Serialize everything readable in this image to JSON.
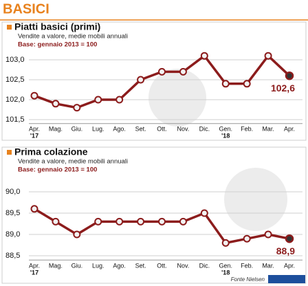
{
  "header": {
    "title": "BASICI"
  },
  "source": "Fonte Nielsen",
  "chart_data": [
    {
      "type": "line",
      "title": "Piatti basici (primi)",
      "subtitle": "Vendite a valore, medie mobili annuali",
      "note": "Base: gennaio 2013 = 100",
      "categories": [
        "Apr.",
        "Mag.",
        "Giu.",
        "Lug.",
        "Ago.",
        "Set.",
        "Ott.",
        "Nov.",
        "Dic.",
        "Gen.",
        "Feb.",
        "Mar.",
        "Apr."
      ],
      "x_sublabels": [
        "'17",
        null,
        null,
        null,
        null,
        null,
        null,
        null,
        null,
        "'18",
        null,
        null,
        null
      ],
      "values": [
        102.1,
        101.9,
        101.8,
        102.0,
        102.0,
        102.5,
        102.7,
        102.7,
        103.1,
        102.4,
        102.4,
        103.1,
        102.6
      ],
      "value_labels": [
        null,
        null,
        null,
        null,
        null,
        null,
        null,
        null,
        null,
        null,
        null,
        null,
        "102,6"
      ],
      "color": "#8c1c1c",
      "ylim": [
        101.4,
        103.2
      ],
      "yticks": [
        {
          "value": 101.5,
          "label": "101,5"
        },
        {
          "value": 102.0,
          "label": "102,0"
        },
        {
          "value": 102.5,
          "label": "102,5"
        },
        {
          "value": 103.0,
          "label": "103,0"
        }
      ],
      "grid": true
    },
    {
      "type": "line",
      "title": "Prima colazione",
      "subtitle": "Vendite a valore, medie mobili annuali",
      "note": "Base: gennaio 2013 = 100",
      "categories": [
        "Apr.",
        "Mag.",
        "Giu.",
        "Lug.",
        "Ago.",
        "Set.",
        "Ott.",
        "Nov.",
        "Dic.",
        "Gen.",
        "Feb.",
        "Mar.",
        "Apr."
      ],
      "x_sublabels": [
        "'17",
        null,
        null,
        null,
        null,
        null,
        null,
        null,
        null,
        "'18",
        null,
        null,
        null
      ],
      "values": [
        89.6,
        89.3,
        89.0,
        89.3,
        89.3,
        89.3,
        89.3,
        89.3,
        89.5,
        88.8,
        88.9,
        89.0,
        88.9
      ],
      "value_labels": [
        null,
        null,
        null,
        null,
        null,
        null,
        null,
        null,
        null,
        null,
        null,
        null,
        "88,9"
      ],
      "color": "#8c1c1c",
      "ylim": [
        88.4,
        90.1
      ],
      "yticks": [
        {
          "value": 88.5,
          "label": "88,5"
        },
        {
          "value": 89.0,
          "label": "89,0"
        },
        {
          "value": 89.5,
          "label": "89,5"
        },
        {
          "value": 90.0,
          "label": "90,0"
        }
      ],
      "grid": true
    }
  ]
}
